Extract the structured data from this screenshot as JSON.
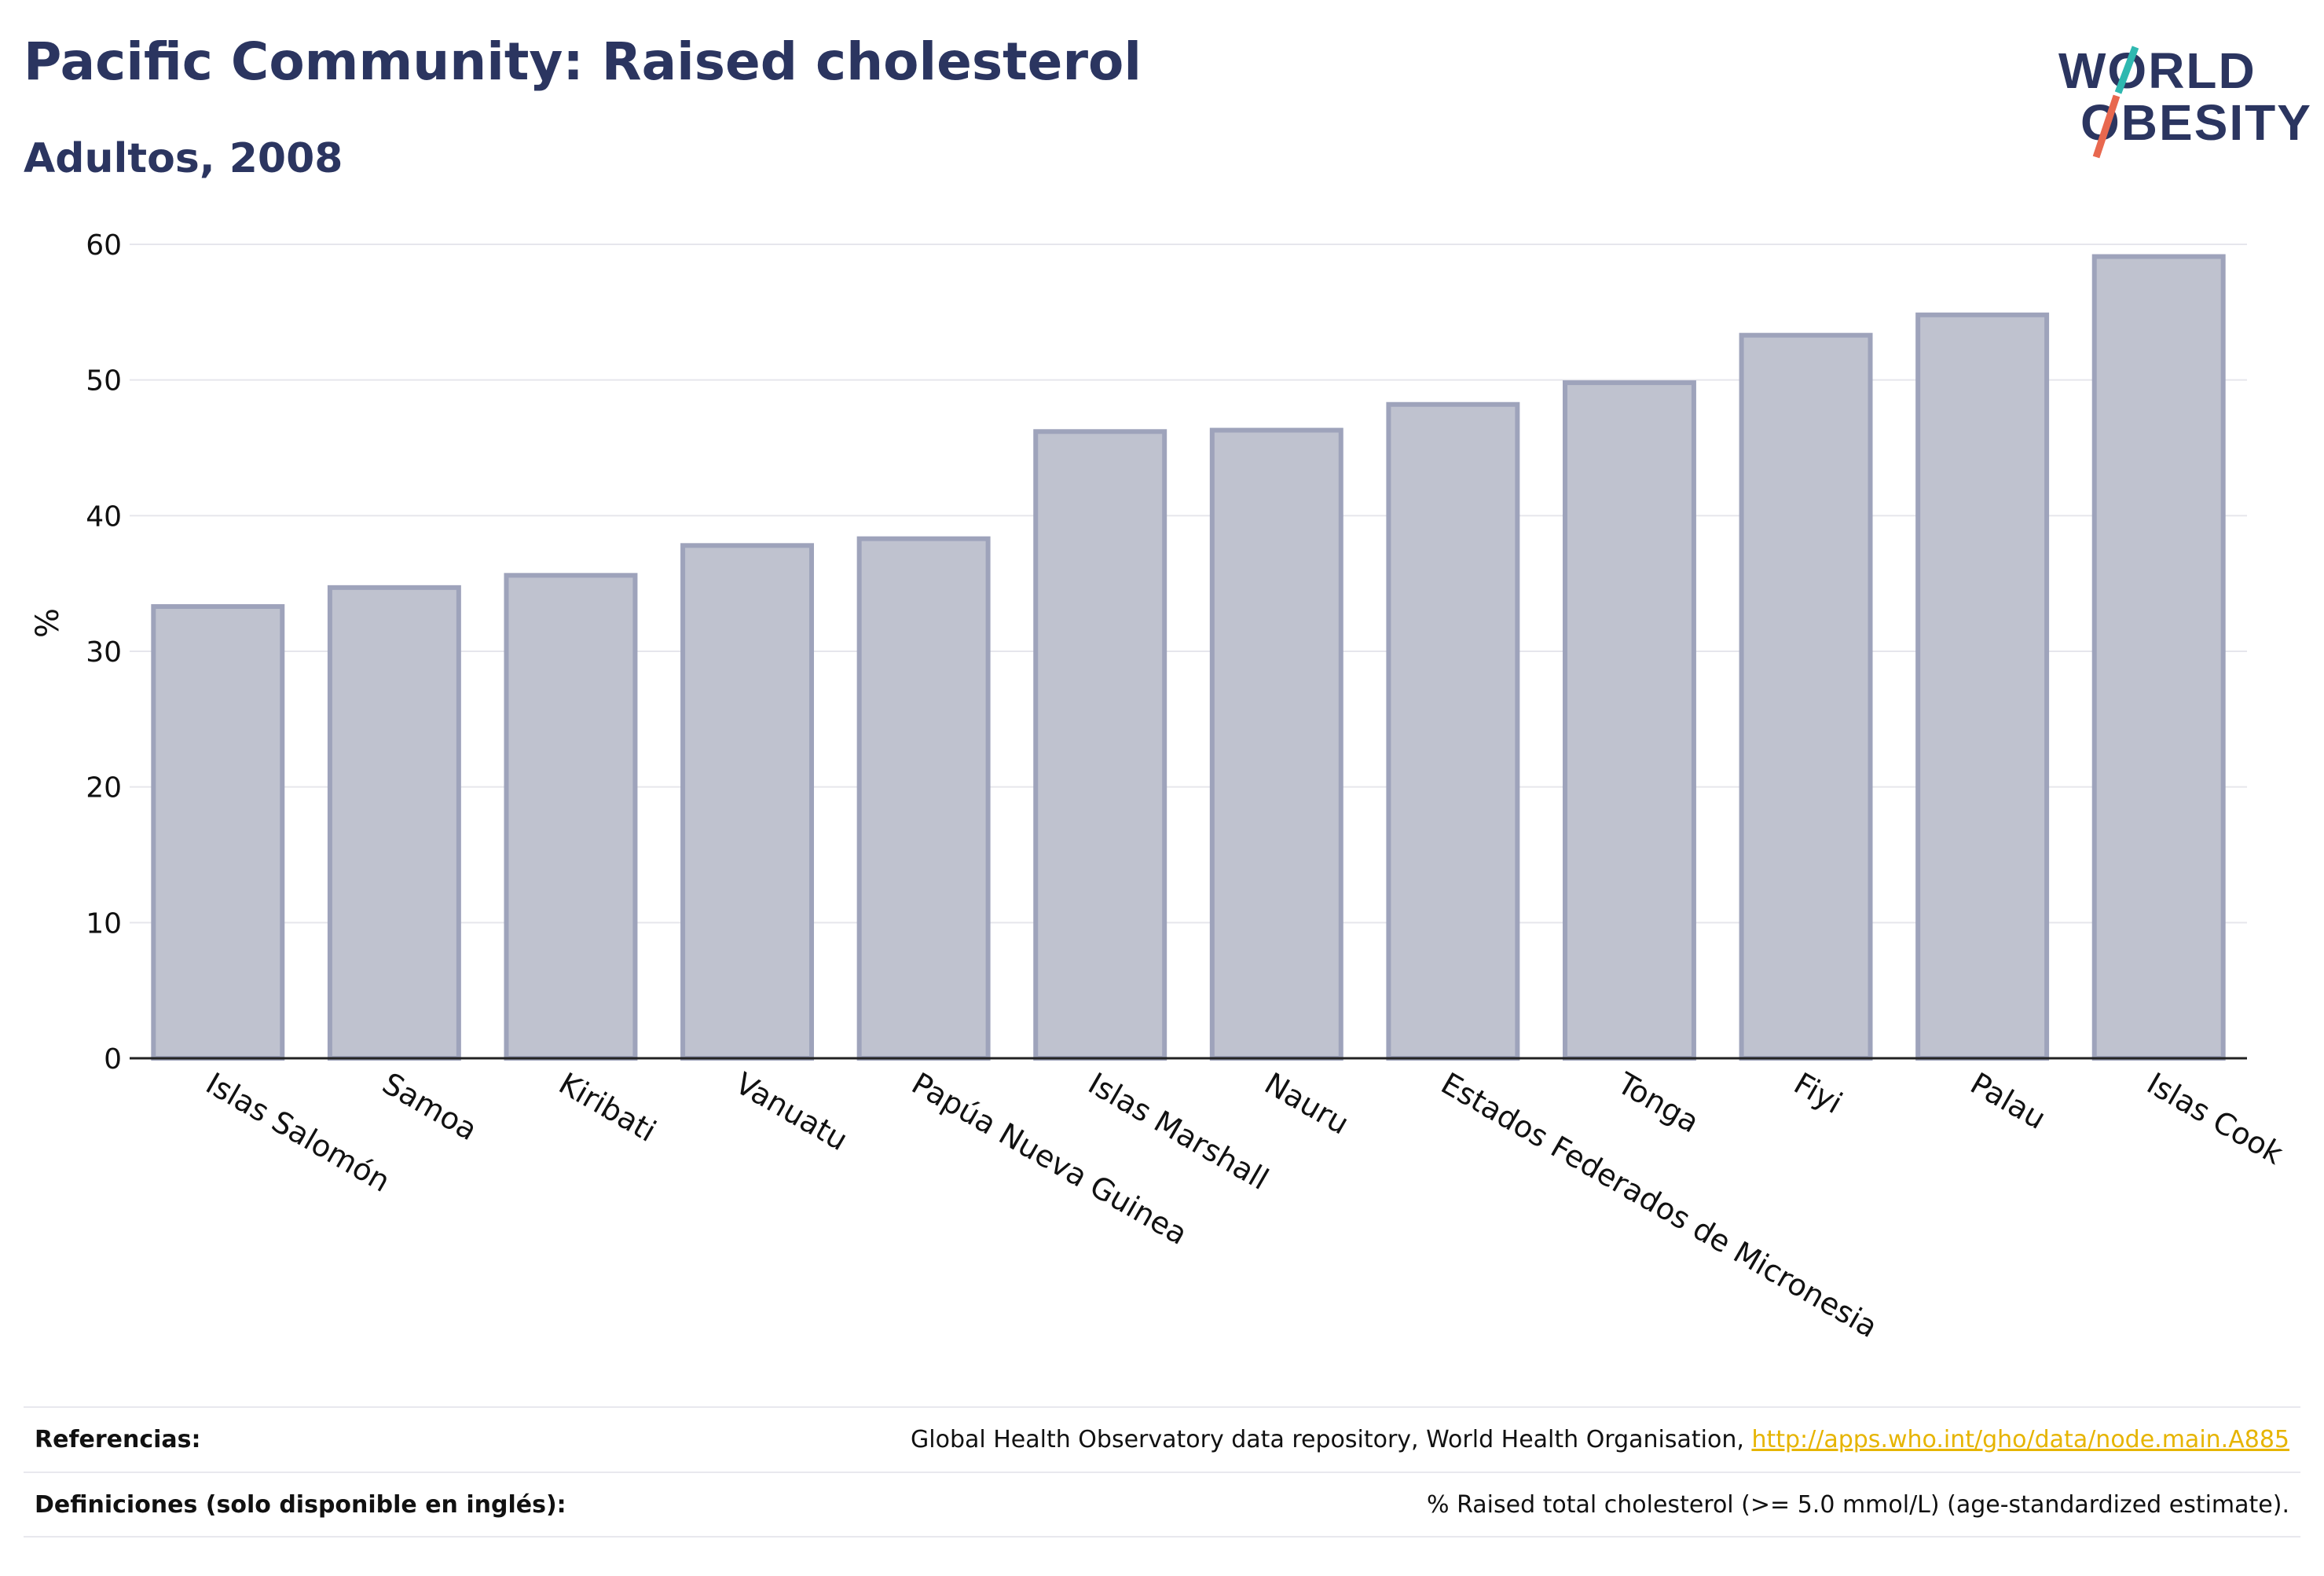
{
  "header": {
    "title": "Pacific Community: Raised cholesterol",
    "subtitle": "Adultos, 2008"
  },
  "logo": {
    "line1": "WORLD",
    "line2": "OBESITY",
    "text_color": "#2b3560",
    "slash_colors": [
      "#2fb8b0",
      "#e8684f"
    ]
  },
  "chart_data": {
    "type": "bar",
    "categories": [
      "Islas Salomón",
      "Samoa",
      "Kiribati",
      "Vanuatu",
      "Papúa Nueva Guinea",
      "Islas Marshall",
      "Nauru",
      "Estados Federados de Micronesia",
      "Tonga",
      "Fiyi",
      "Palau",
      "Islas Cook"
    ],
    "values": [
      33.3,
      34.7,
      35.6,
      37.8,
      38.3,
      46.2,
      46.3,
      48.2,
      49.8,
      53.3,
      54.8,
      59.1
    ],
    "ylabel": "%",
    "xlabel": "",
    "ylim": [
      0,
      60
    ],
    "yticks": [
      0,
      10,
      20,
      30,
      40,
      50,
      60
    ],
    "grid": true,
    "bar_color": "#bfc2cf",
    "bar_border_color": "#9ea3bb"
  },
  "footer": {
    "references_label": "Referencias:",
    "references_text": "Global Health Observatory data repository, World Health Organisation, ",
    "references_link": "http://apps.who.int/gho/data/node.main.A885",
    "definitions_label": "Definiciones (solo disponible en inglés):",
    "definitions_text": "% Raised total cholesterol (>= 5.0 mmol/L) (age-standardized estimate)."
  }
}
